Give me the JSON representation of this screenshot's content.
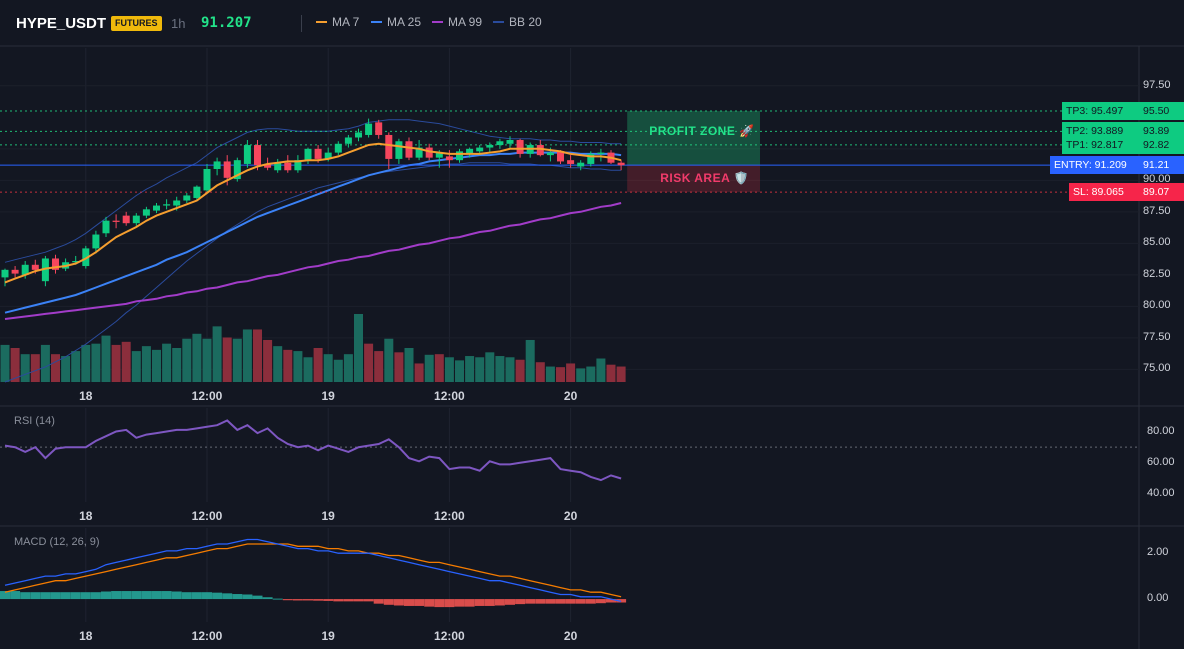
{
  "header": {
    "symbol": "HYPE_USDT",
    "badge": "FUTURES",
    "timeframe": "1h",
    "last_price": "91.207",
    "legend": [
      {
        "label": "MA 7",
        "color": "#f59e2f"
      },
      {
        "label": "MA 25",
        "color": "#3b82f6"
      },
      {
        "label": "MA 99",
        "color": "#a23cc9"
      },
      {
        "label": "BB 20",
        "color": "#2a4b9c"
      }
    ]
  },
  "panes": {
    "rsi_title": "RSI (14)",
    "macd_title": "MACD (12, 26, 9)"
  },
  "annotations": {
    "profit_zone": "PROFIT ZONE 🚀",
    "risk_area": "RISK AREA 🛡️"
  },
  "levels": {
    "tp3": {
      "label": "TP3: 95.497",
      "axis": "95.50",
      "value": 95.497,
      "color": "#22e38a"
    },
    "tp2": {
      "label": "TP2: 93.889",
      "axis": "93.89",
      "value": 93.889,
      "color": "#22e38a"
    },
    "tp1": {
      "label": "TP1: 92.817",
      "axis": "92.82",
      "value": 92.817,
      "color": "#22e38a"
    },
    "entry": {
      "label": "ENTRY: 91.209",
      "axis": "91.21",
      "value": 91.209,
      "color": "#2962ff"
    },
    "sl": {
      "label": "SL: 89.065",
      "axis": "89.07",
      "value": 89.065,
      "color": "#f23645"
    }
  },
  "chart_data": [
    {
      "type": "candlestick",
      "title": "HYPE_USDT 1h",
      "price_axis_ticks": [
        "97.50",
        "92.50",
        "90.00",
        "87.50",
        "85.00",
        "82.50",
        "80.00",
        "77.50",
        "75.00"
      ],
      "price_ylim": [
        74.0,
        100.5
      ],
      "time_axis_ticks": [
        {
          "label": "18",
          "index": 8
        },
        {
          "label": "12:00",
          "index": 20
        },
        {
          "label": "19",
          "index": 32
        },
        {
          "label": "12:00",
          "index": 44
        },
        {
          "label": "20",
          "index": 56
        }
      ],
      "candles": [
        {
          "o": 82.3,
          "h": 83.0,
          "l": 81.6,
          "c": 82.9
        },
        {
          "o": 82.9,
          "h": 83.2,
          "l": 82.3,
          "c": 82.6
        },
        {
          "o": 82.5,
          "h": 83.6,
          "l": 82.2,
          "c": 83.3
        },
        {
          "o": 83.3,
          "h": 83.7,
          "l": 82.6,
          "c": 82.9
        },
        {
          "o": 82.0,
          "h": 84.0,
          "l": 81.6,
          "c": 83.8
        },
        {
          "o": 83.8,
          "h": 84.1,
          "l": 82.6,
          "c": 82.9
        },
        {
          "o": 83.0,
          "h": 83.8,
          "l": 82.8,
          "c": 83.5
        },
        {
          "o": 83.5,
          "h": 84.0,
          "l": 83.3,
          "c": 83.6
        },
        {
          "o": 83.2,
          "h": 84.8,
          "l": 83.0,
          "c": 84.6
        },
        {
          "o": 84.6,
          "h": 86.0,
          "l": 84.2,
          "c": 85.7
        },
        {
          "o": 85.8,
          "h": 87.1,
          "l": 85.5,
          "c": 86.8
        },
        {
          "o": 86.8,
          "h": 87.3,
          "l": 86.2,
          "c": 86.7
        },
        {
          "o": 87.2,
          "h": 87.5,
          "l": 86.4,
          "c": 86.6
        },
        {
          "o": 86.6,
          "h": 87.4,
          "l": 86.4,
          "c": 87.2
        },
        {
          "o": 87.2,
          "h": 87.9,
          "l": 87.0,
          "c": 87.7
        },
        {
          "o": 87.6,
          "h": 88.2,
          "l": 87.4,
          "c": 88.0
        },
        {
          "o": 88.0,
          "h": 88.5,
          "l": 87.7,
          "c": 88.1
        },
        {
          "o": 88.0,
          "h": 88.7,
          "l": 87.6,
          "c": 88.4
        },
        {
          "o": 88.4,
          "h": 89.0,
          "l": 88.2,
          "c": 88.8
        },
        {
          "o": 88.6,
          "h": 89.6,
          "l": 88.4,
          "c": 89.5
        },
        {
          "o": 89.2,
          "h": 91.3,
          "l": 89.0,
          "c": 90.9
        },
        {
          "o": 90.9,
          "h": 91.8,
          "l": 90.4,
          "c": 91.5
        },
        {
          "o": 91.5,
          "h": 92.0,
          "l": 89.6,
          "c": 90.2
        },
        {
          "o": 90.1,
          "h": 91.8,
          "l": 89.9,
          "c": 91.6
        },
        {
          "o": 91.3,
          "h": 93.2,
          "l": 91.0,
          "c": 92.8
        },
        {
          "o": 92.8,
          "h": 93.2,
          "l": 90.8,
          "c": 91.2
        },
        {
          "o": 91.3,
          "h": 91.8,
          "l": 90.8,
          "c": 91.0
        },
        {
          "o": 90.8,
          "h": 91.7,
          "l": 90.6,
          "c": 91.4
        },
        {
          "o": 91.4,
          "h": 92.0,
          "l": 90.6,
          "c": 90.8
        },
        {
          "o": 90.8,
          "h": 92.0,
          "l": 90.6,
          "c": 91.6
        },
        {
          "o": 91.6,
          "h": 92.6,
          "l": 91.3,
          "c": 92.5
        },
        {
          "o": 92.5,
          "h": 92.8,
          "l": 91.4,
          "c": 91.7
        },
        {
          "o": 91.7,
          "h": 92.6,
          "l": 91.5,
          "c": 92.2
        },
        {
          "o": 92.2,
          "h": 93.1,
          "l": 92.0,
          "c": 92.9
        },
        {
          "o": 92.9,
          "h": 93.6,
          "l": 92.6,
          "c": 93.4
        },
        {
          "o": 93.4,
          "h": 94.1,
          "l": 93.1,
          "c": 93.8
        },
        {
          "o": 93.6,
          "h": 94.9,
          "l": 93.4,
          "c": 94.5
        },
        {
          "o": 94.6,
          "h": 94.8,
          "l": 93.3,
          "c": 93.6
        },
        {
          "o": 93.6,
          "h": 93.8,
          "l": 90.9,
          "c": 91.7
        },
        {
          "o": 91.7,
          "h": 93.3,
          "l": 91.3,
          "c": 93.1
        },
        {
          "o": 93.1,
          "h": 93.4,
          "l": 91.6,
          "c": 91.8
        },
        {
          "o": 91.8,
          "h": 93.2,
          "l": 91.6,
          "c": 92.6
        },
        {
          "o": 92.6,
          "h": 92.9,
          "l": 91.6,
          "c": 91.8
        },
        {
          "o": 91.8,
          "h": 92.4,
          "l": 91.0,
          "c": 92.2
        },
        {
          "o": 91.9,
          "h": 92.4,
          "l": 91.0,
          "c": 91.6
        },
        {
          "o": 91.6,
          "h": 92.5,
          "l": 91.4,
          "c": 92.3
        },
        {
          "o": 92.1,
          "h": 92.6,
          "l": 91.8,
          "c": 92.5
        },
        {
          "o": 92.3,
          "h": 92.8,
          "l": 92.0,
          "c": 92.6
        },
        {
          "o": 92.6,
          "h": 93.0,
          "l": 92.2,
          "c": 92.8
        },
        {
          "o": 92.8,
          "h": 93.3,
          "l": 92.5,
          "c": 93.1
        },
        {
          "o": 92.9,
          "h": 93.5,
          "l": 92.5,
          "c": 93.2
        },
        {
          "o": 93.2,
          "h": 93.3,
          "l": 91.8,
          "c": 92.1
        },
        {
          "o": 92.1,
          "h": 93.0,
          "l": 91.8,
          "c": 92.8
        },
        {
          "o": 92.8,
          "h": 93.2,
          "l": 91.9,
          "c": 92.0
        },
        {
          "o": 92.0,
          "h": 92.6,
          "l": 91.5,
          "c": 92.2
        },
        {
          "o": 92.3,
          "h": 92.4,
          "l": 91.3,
          "c": 91.5
        },
        {
          "o": 91.6,
          "h": 92.0,
          "l": 91.0,
          "c": 91.3
        },
        {
          "o": 91.1,
          "h": 91.6,
          "l": 90.8,
          "c": 91.4
        },
        {
          "o": 91.3,
          "h": 92.3,
          "l": 91.1,
          "c": 92.1
        },
        {
          "o": 92.1,
          "h": 92.5,
          "l": 91.5,
          "c": 92.2
        },
        {
          "o": 92.2,
          "h": 92.4,
          "l": 91.3,
          "c": 91.4
        },
        {
          "o": 91.4,
          "h": 91.6,
          "l": 90.8,
          "c": 91.2
        }
      ],
      "ma7": [
        81.9,
        82.2,
        82.5,
        82.8,
        83.0,
        83.1,
        83.2,
        83.4,
        83.8,
        84.3,
        84.9,
        85.5,
        85.9,
        86.3,
        86.8,
        87.2,
        87.5,
        87.8,
        88.1,
        88.4,
        89.0,
        89.6,
        90.0,
        90.4,
        90.8,
        91.1,
        91.3,
        91.4,
        91.5,
        91.5,
        91.6,
        91.6,
        91.7,
        91.9,
        92.2,
        92.5,
        92.8,
        92.9,
        92.8,
        92.7,
        92.6,
        92.5,
        92.3,
        92.2,
        92.1,
        92.1,
        92.1,
        92.1,
        92.2,
        92.3,
        92.5,
        92.5,
        92.5,
        92.5,
        92.4,
        92.3,
        92.1,
        92.0,
        91.9,
        91.9,
        91.8,
        91.6
      ],
      "ma25": [
        79.5,
        79.7,
        79.9,
        80.1,
        80.3,
        80.5,
        80.7,
        80.9,
        81.2,
        81.5,
        81.8,
        82.1,
        82.4,
        82.7,
        83.0,
        83.3,
        83.7,
        84.0,
        84.3,
        84.7,
        85.1,
        85.5,
        85.9,
        86.3,
        86.7,
        87.1,
        87.4,
        87.7,
        88.0,
        88.3,
        88.6,
        88.9,
        89.2,
        89.5,
        89.8,
        90.1,
        90.4,
        90.6,
        90.8,
        91.0,
        91.2,
        91.3,
        91.5,
        91.6,
        91.7,
        91.8,
        91.9,
        92.0,
        92.0,
        92.1,
        92.1,
        92.2,
        92.2,
        92.2,
        92.2,
        92.2,
        92.2,
        92.1,
        92.1,
        92.1,
        92.1,
        92.0
      ],
      "ma99": [
        79.0,
        79.1,
        79.2,
        79.3,
        79.4,
        79.5,
        79.6,
        79.7,
        79.8,
        79.9,
        80.0,
        80.1,
        80.2,
        80.4,
        80.5,
        80.6,
        80.8,
        80.9,
        81.1,
        81.2,
        81.4,
        81.5,
        81.7,
        81.9,
        82.0,
        82.2,
        82.4,
        82.5,
        82.7,
        82.9,
        83.1,
        83.2,
        83.4,
        83.6,
        83.7,
        83.9,
        84.0,
        84.2,
        84.4,
        84.5,
        84.7,
        84.9,
        85.0,
        85.2,
        85.4,
        85.5,
        85.7,
        85.9,
        86.0,
        86.2,
        86.4,
        86.5,
        86.7,
        86.9,
        87.0,
        87.2,
        87.4,
        87.5,
        87.7,
        87.9,
        88.0,
        88.2
      ],
      "bb_upper": [
        83.5,
        83.7,
        83.9,
        84.1,
        84.3,
        84.6,
        84.9,
        85.3,
        85.8,
        86.4,
        87.0,
        87.6,
        88.2,
        88.8,
        89.3,
        89.7,
        90.2,
        90.6,
        91.0,
        91.4,
        92.0,
        92.6,
        93.0,
        93.4,
        93.8,
        94.0,
        94.1,
        94.1,
        94.0,
        93.9,
        93.9,
        93.9,
        93.9,
        94.0,
        94.1,
        94.3,
        94.6,
        94.7,
        94.8,
        94.8,
        94.8,
        94.7,
        94.6,
        94.5,
        94.3,
        94.1,
        93.9,
        93.7,
        93.5,
        93.4,
        93.3,
        93.3,
        93.3,
        93.2,
        93.2,
        93.1,
        93.1,
        93.0,
        93.0,
        93.0,
        92.9,
        92.9
      ],
      "bb_lower": [
        74.0,
        74.3,
        74.6,
        74.9,
        75.2,
        75.6,
        76.0,
        76.5,
        77.0,
        77.6,
        78.2,
        78.8,
        79.5,
        80.1,
        80.8,
        81.5,
        82.2,
        82.9,
        83.6,
        84.2,
        84.8,
        85.4,
        86.0,
        86.5,
        87.0,
        87.5,
        87.9,
        88.2,
        88.5,
        88.8,
        89.1,
        89.4,
        89.6,
        89.8,
        90.0,
        90.2,
        90.4,
        90.6,
        90.7,
        90.8,
        90.9,
        91.0,
        91.1,
        91.2,
        91.3,
        91.3,
        91.4,
        91.4,
        91.4,
        91.4,
        91.3,
        91.3,
        91.3,
        91.2,
        91.2,
        91.1,
        91.0,
        91.0,
        90.9,
        90.9,
        90.8,
        90.8
      ],
      "volume": [
        60,
        55,
        45,
        45,
        60,
        45,
        42,
        50,
        60,
        62,
        75,
        60,
        65,
        50,
        58,
        52,
        62,
        55,
        70,
        78,
        70,
        90,
        72,
        70,
        85,
        85,
        68,
        58,
        52,
        50,
        40,
        55,
        45,
        36,
        45,
        110,
        62,
        50,
        70,
        48,
        55,
        30,
        44,
        45,
        40,
        35,
        42,
        40,
        48,
        42,
        40,
        36,
        68,
        32,
        25,
        24,
        30,
        22,
        25,
        38,
        28,
        25
      ],
      "volume_up": [
        true,
        false,
        true,
        false,
        true,
        false,
        true,
        true,
        true,
        true,
        true,
        false,
        false,
        true,
        true,
        true,
        true,
        true,
        true,
        true,
        true,
        true,
        false,
        true,
        true,
        false,
        false,
        true,
        false,
        true,
        true,
        false,
        true,
        true,
        true,
        true,
        false,
        false,
        true,
        false,
        true,
        false,
        true,
        false,
        true,
        true,
        true,
        true,
        true,
        true,
        true,
        false,
        true,
        false,
        true,
        false,
        false,
        true,
        true,
        true,
        false,
        false
      ]
    },
    {
      "type": "line",
      "title": "RSI (14)",
      "ticks": [
        "80.00",
        "60.00",
        "40.00"
      ],
      "ylim": [
        35,
        95
      ],
      "reference_line": 70,
      "values": [
        71,
        70,
        67,
        70,
        63,
        69,
        70,
        70,
        70,
        74,
        77,
        80,
        81,
        76,
        78,
        79,
        80,
        81,
        81,
        82,
        83,
        84,
        87,
        81,
        84,
        79,
        82,
        76,
        72,
        70,
        71,
        68,
        71,
        69,
        67,
        70,
        71,
        72,
        75,
        70,
        63,
        61,
        64,
        63,
        56,
        57,
        57,
        55,
        61,
        59,
        59,
        60,
        61,
        62,
        63,
        56,
        55,
        54,
        51,
        49,
        52,
        50
      ]
    },
    {
      "type": "bar+line",
      "title": "MACD (12, 26, 9)",
      "ticks": [
        "2.00",
        "0.00"
      ],
      "ylim": [
        -1.0,
        3.1
      ],
      "macd": [
        0.6,
        0.7,
        0.8,
        0.9,
        1.0,
        1.0,
        1.1,
        1.1,
        1.2,
        1.3,
        1.5,
        1.6,
        1.7,
        1.8,
        1.9,
        2.0,
        2.1,
        2.1,
        2.2,
        2.2,
        2.3,
        2.4,
        2.4,
        2.5,
        2.6,
        2.6,
        2.5,
        2.4,
        2.3,
        2.2,
        2.2,
        2.1,
        2.1,
        2.0,
        2.0,
        2.0,
        2.0,
        1.9,
        1.8,
        1.7,
        1.6,
        1.5,
        1.4,
        1.3,
        1.2,
        1.1,
        1.0,
        0.9,
        0.8,
        0.8,
        0.7,
        0.6,
        0.5,
        0.4,
        0.3,
        0.2,
        0.2,
        0.1,
        0.1,
        0.1,
        0.0,
        -0.1
      ],
      "signal": [
        0.3,
        0.4,
        0.5,
        0.6,
        0.7,
        0.8,
        0.8,
        0.9,
        1.0,
        1.1,
        1.2,
        1.3,
        1.4,
        1.5,
        1.6,
        1.7,
        1.8,
        1.8,
        1.9,
        2.0,
        2.1,
        2.2,
        2.2,
        2.3,
        2.4,
        2.4,
        2.4,
        2.4,
        2.4,
        2.3,
        2.3,
        2.3,
        2.2,
        2.2,
        2.1,
        2.1,
        2.0,
        2.0,
        1.9,
        1.9,
        1.8,
        1.7,
        1.6,
        1.6,
        1.5,
        1.4,
        1.3,
        1.2,
        1.1,
        1.0,
        1.0,
        0.9,
        0.8,
        0.7,
        0.6,
        0.5,
        0.4,
        0.4,
        0.3,
        0.3,
        0.2,
        0.1
      ],
      "histogram": [
        0.35,
        0.35,
        0.3,
        0.3,
        0.3,
        0.3,
        0.3,
        0.3,
        0.3,
        0.3,
        0.33,
        0.35,
        0.35,
        0.35,
        0.35,
        0.35,
        0.35,
        0.33,
        0.3,
        0.3,
        0.3,
        0.28,
        0.25,
        0.22,
        0.2,
        0.15,
        0.08,
        0.02,
        -0.05,
        -0.06,
        -0.06,
        -0.07,
        -0.08,
        -0.1,
        -0.1,
        -0.1,
        -0.1,
        -0.2,
        -0.25,
        -0.28,
        -0.3,
        -0.3,
        -0.33,
        -0.35,
        -0.35,
        -0.33,
        -0.33,
        -0.3,
        -0.3,
        -0.28,
        -0.25,
        -0.22,
        -0.2,
        -0.2,
        -0.2,
        -0.2,
        -0.2,
        -0.2,
        -0.2,
        -0.18,
        -0.15,
        -0.15
      ]
    }
  ]
}
